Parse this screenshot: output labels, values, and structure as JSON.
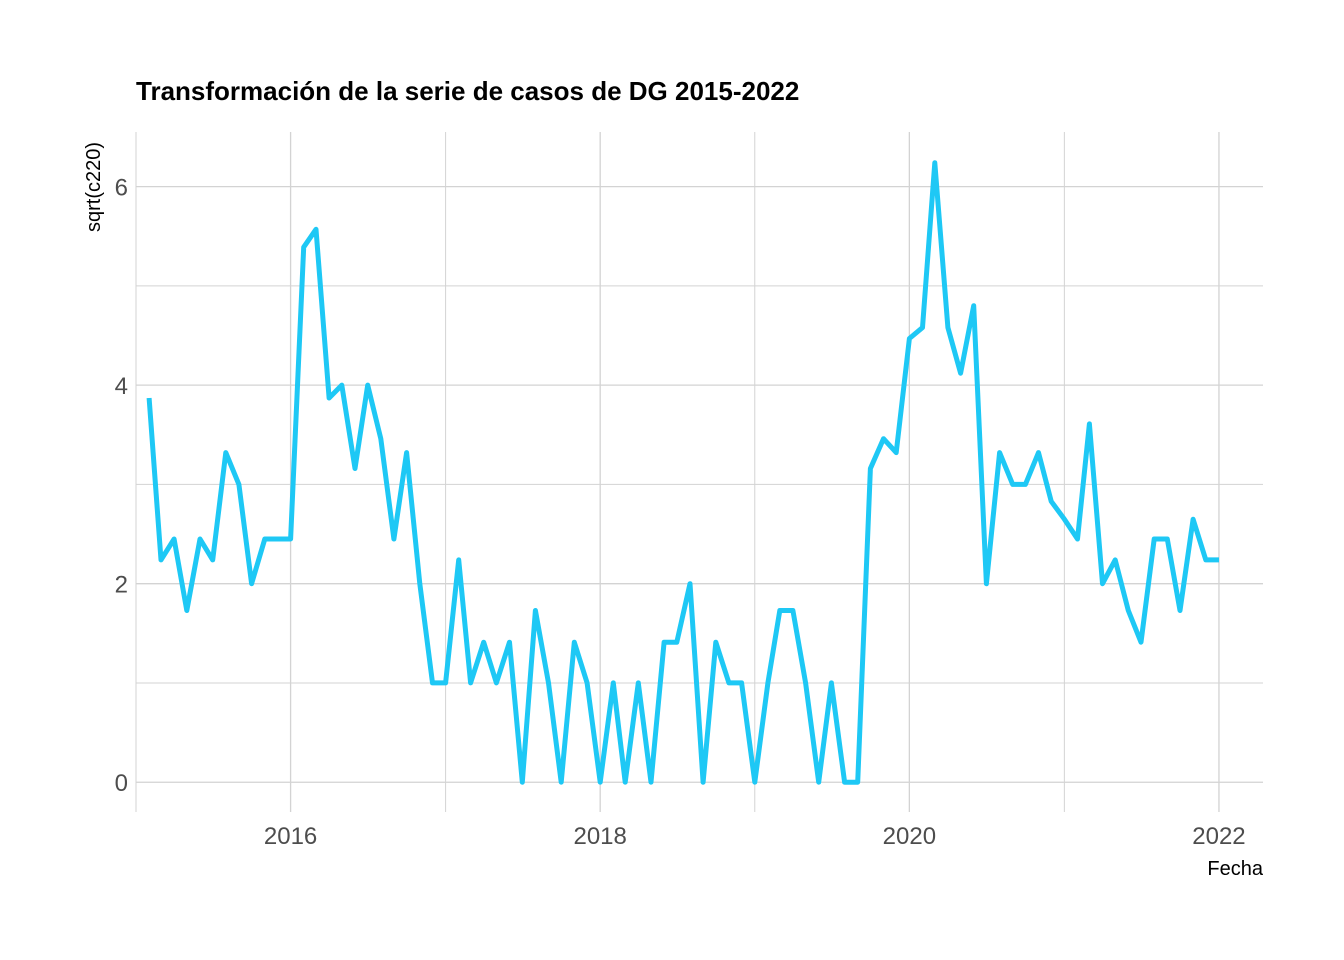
{
  "chart_data": {
    "type": "line",
    "title": "Transformación de la serie de casos de DG 2015-2022",
    "xlabel": "Fecha",
    "ylabel": "sqrt(c220)",
    "xlim": [
      "2015-01-01",
      "2022-04-15"
    ],
    "ylim": [
      -0.3,
      6.55
    ],
    "x_ticks": [
      "2016-01-01",
      "2018-01-01",
      "2020-01-01",
      "2022-01-01"
    ],
    "x_tick_labels": [
      "2016",
      "2018",
      "2020",
      "2022"
    ],
    "y_ticks": [
      0,
      2,
      4,
      6
    ],
    "y_tick_labels": [
      "0",
      "2",
      "4",
      "6"
    ],
    "grid": true,
    "legend": "none",
    "line_color": "#1ec8f5",
    "grid_color": "#d3d3d3",
    "series": [
      {
        "x": [
          "2015-02-01",
          "2015-03-01",
          "2015-04-01",
          "2015-05-01",
          "2015-06-01",
          "2015-07-01",
          "2015-08-01",
          "2015-09-01",
          "2015-10-01",
          "2015-11-01",
          "2015-12-01",
          "2016-01-01",
          "2016-02-01",
          "2016-03-01",
          "2016-04-01",
          "2016-05-01",
          "2016-06-01",
          "2016-07-01",
          "2016-08-01",
          "2016-09-01",
          "2016-10-01",
          "2016-11-01",
          "2016-12-01",
          "2017-01-01",
          "2017-02-01",
          "2017-03-01",
          "2017-04-01",
          "2017-05-01",
          "2017-06-01",
          "2017-07-01",
          "2017-08-01",
          "2017-09-01",
          "2017-10-01",
          "2017-11-01",
          "2017-12-01",
          "2018-01-01",
          "2018-02-01",
          "2018-03-01",
          "2018-04-01",
          "2018-05-01",
          "2018-06-01",
          "2018-07-01",
          "2018-08-01",
          "2018-09-01",
          "2018-10-01",
          "2018-11-01",
          "2018-12-01",
          "2019-01-01",
          "2019-02-01",
          "2019-03-01",
          "2019-04-01",
          "2019-05-01",
          "2019-06-01",
          "2019-07-01",
          "2019-08-01",
          "2019-09-01",
          "2019-10-01",
          "2019-11-01",
          "2019-12-01",
          "2020-01-01",
          "2020-02-01",
          "2020-03-01",
          "2020-04-01",
          "2020-05-01",
          "2020-06-01",
          "2020-07-01",
          "2020-08-01",
          "2020-09-01",
          "2020-10-01",
          "2020-11-01",
          "2020-12-01",
          "2021-01-01",
          "2021-02-01",
          "2021-03-01",
          "2021-04-01",
          "2021-05-01",
          "2021-06-01",
          "2021-07-01",
          "2021-08-01",
          "2021-09-01",
          "2021-10-01",
          "2021-11-01",
          "2021-12-01",
          "2022-01-01"
        ],
        "y": [
          3.87,
          2.24,
          2.45,
          1.73,
          2.45,
          2.24,
          3.32,
          3.0,
          2.0,
          2.45,
          2.45,
          2.45,
          5.39,
          5.57,
          3.87,
          4.0,
          3.16,
          4.0,
          3.46,
          2.45,
          3.32,
          2.0,
          1.0,
          1.0,
          2.24,
          1.0,
          1.41,
          1.0,
          1.41,
          0,
          1.73,
          1.0,
          0,
          1.41,
          1.0,
          0,
          1.0,
          0,
          1.0,
          0,
          1.41,
          1.41,
          2.0,
          0,
          1.41,
          1.0,
          1.0,
          0,
          1.0,
          1.73,
          1.73,
          1.0,
          0,
          1.0,
          0,
          0,
          3.16,
          3.46,
          3.32,
          4.47,
          4.58,
          6.24,
          4.58,
          4.12,
          4.8,
          2.0,
          3.32,
          3.0,
          3.0,
          3.32,
          2.83,
          2.65,
          2.45,
          3.61,
          2.0,
          2.24,
          1.73,
          1.41,
          2.45,
          2.45,
          1.73,
          2.65,
          2.24,
          2.24
        ]
      }
    ]
  }
}
